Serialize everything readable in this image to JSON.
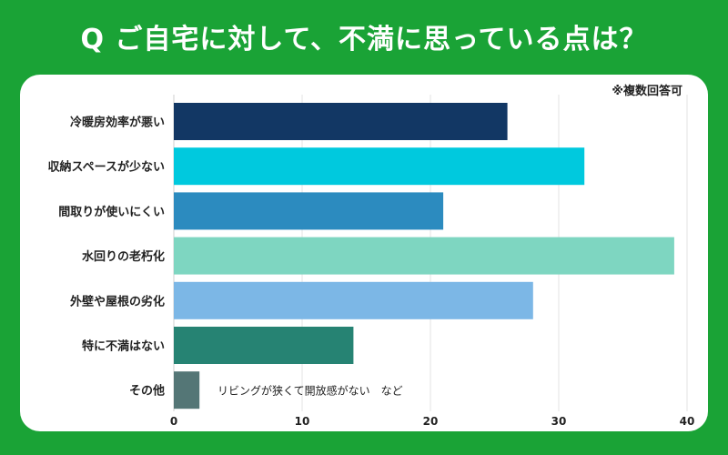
{
  "title": "Q ご自宅に対して、不満に思っている点は？",
  "note": "※複数回答可",
  "chart_data": {
    "type": "bar",
    "orientation": "horizontal",
    "categories": [
      "冷暖房効率が悪い",
      "収納スペースが少ない",
      "間取りが使いにくい",
      "水回りの老朽化",
      "外壁や屋根の劣化",
      "特に不満はない",
      "その他"
    ],
    "values": [
      26,
      32,
      21,
      39,
      28,
      14,
      2
    ],
    "colors": [
      "#123764",
      "#00c9de",
      "#2c8bbf",
      "#7ed6c1",
      "#7cb7e6",
      "#268373",
      "#547676"
    ],
    "x_ticks": [
      0,
      10,
      20,
      30,
      40
    ],
    "xlim": [
      0,
      40
    ],
    "grid": true,
    "annotation": "リビングが狭くて開放感がない　など",
    "annotation_category": "その他"
  }
}
